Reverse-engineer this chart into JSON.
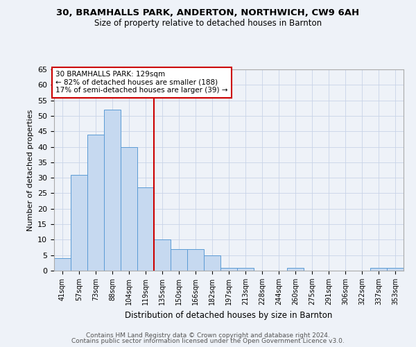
{
  "title1": "30, BRAMHALLS PARK, ANDERTON, NORTHWICH, CW9 6AH",
  "title2": "Size of property relative to detached houses in Barnton",
  "xlabel": "Distribution of detached houses by size in Barnton",
  "ylabel": "Number of detached properties",
  "footer1": "Contains HM Land Registry data © Crown copyright and database right 2024.",
  "footer2": "Contains public sector information licensed under the Open Government Licence v3.0.",
  "bin_labels": [
    "41sqm",
    "57sqm",
    "73sqm",
    "88sqm",
    "104sqm",
    "119sqm",
    "135sqm",
    "150sqm",
    "166sqm",
    "182sqm",
    "197sqm",
    "213sqm",
    "228sqm",
    "244sqm",
    "260sqm",
    "275sqm",
    "291sqm",
    "306sqm",
    "322sqm",
    "337sqm",
    "353sqm"
  ],
  "bar_values": [
    4,
    31,
    44,
    52,
    40,
    27,
    10,
    7,
    7,
    5,
    1,
    1,
    0,
    0,
    1,
    0,
    0,
    0,
    0,
    1,
    1
  ],
  "bar_color": "#c6d9f0",
  "bar_edge_color": "#5b9bd5",
  "reference_line_x": 6,
  "ref_line_color": "#cc0000",
  "annotation_title": "30 BRAMHALLS PARK: 129sqm",
  "annotation_line1": "← 82% of detached houses are smaller (188)",
  "annotation_line2": "17% of semi-detached houses are larger (39) →",
  "annotation_box_color": "#ffffff",
  "annotation_box_edge": "#cc0000",
  "ylim": [
    0,
    65
  ],
  "yticks": [
    0,
    5,
    10,
    15,
    20,
    25,
    30,
    35,
    40,
    45,
    50,
    55,
    60,
    65
  ],
  "bg_color": "#eef2f8"
}
